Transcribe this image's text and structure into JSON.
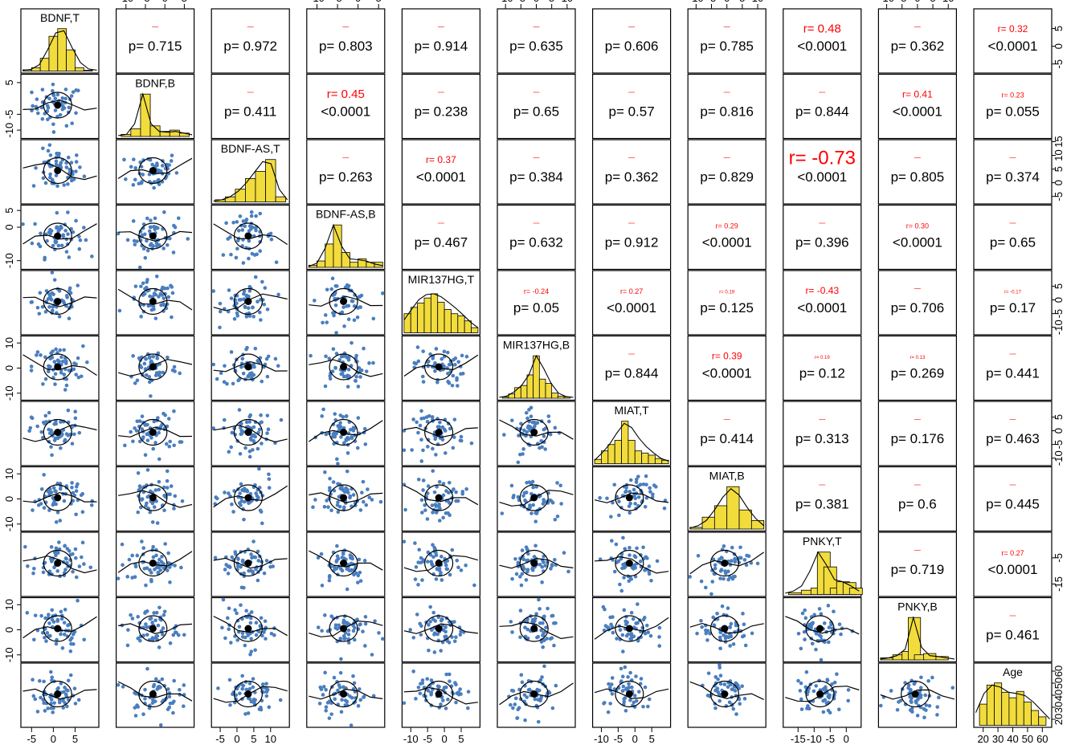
{
  "chart_data": {
    "type": "scatter",
    "variables": [
      "BDNF,T",
      "BDNF,B",
      "BDNF-AS,T",
      "BDNF-AS,B",
      "MIR137HG,T",
      "MIR137HG,B",
      "MIAT,T",
      "MIAT,B",
      "PNKY,T",
      "PNKY,B",
      "Age"
    ],
    "ranges": [
      [
        -7,
        10
      ],
      [
        -12,
        7
      ],
      [
        -7,
        15
      ],
      [
        -12,
        6
      ],
      [
        -12,
        10
      ],
      [
        -12,
        12
      ],
      [
        -12,
        10
      ],
      [
        -12,
        12
      ],
      [
        -19,
        4
      ],
      [
        -12,
        12
      ],
      [
        15,
        65
      ]
    ],
    "bottom_ticks": [
      {
        "values": [
          -5,
          0,
          5
        ],
        "labels": [
          "-5",
          "0",
          "5"
        ]
      },
      null,
      {
        "values": [
          -5,
          0,
          5,
          10
        ],
        "labels": [
          "-5",
          "0",
          "5",
          "10"
        ]
      },
      null,
      {
        "values": [
          -10,
          -5,
          0,
          5
        ],
        "labels": [
          "-10",
          "-5",
          "0",
          "5"
        ]
      },
      null,
      {
        "values": [
          -10,
          -5,
          0,
          5
        ],
        "labels": [
          "-10",
          "-5",
          "0",
          "5"
        ]
      },
      null,
      {
        "values": [
          -15,
          -10,
          -5,
          0
        ],
        "labels": [
          "-15",
          "-10",
          "-5",
          "0"
        ]
      },
      null,
      {
        "values": [
          20,
          30,
          40,
          50,
          60
        ],
        "labels": [
          "20",
          "30",
          "40",
          "50",
          "60"
        ]
      }
    ],
    "top_ticks": [
      null,
      {
        "values": [
          -10,
          -5,
          0,
          5
        ],
        "labels": [
          "-10",
          "-5",
          "0",
          "5"
        ]
      },
      null,
      {
        "values": [
          -10,
          -5,
          0,
          5
        ],
        "labels": [
          "-10",
          "-5",
          "0",
          "5"
        ]
      },
      null,
      {
        "values": [
          -10,
          -5,
          0,
          5,
          10
        ],
        "labels": [
          "-10",
          "-5",
          "0",
          "5",
          "10"
        ]
      },
      null,
      {
        "values": [
          -10,
          -5,
          0,
          5,
          10
        ],
        "labels": [
          "-10",
          "-5",
          "0",
          "5",
          "10"
        ]
      },
      null,
      {
        "values": [
          -10,
          -5,
          0,
          5,
          10
        ],
        "labels": [
          "-10",
          "-5",
          "0",
          "5",
          "10"
        ]
      },
      null
    ],
    "left_ticks": [
      null,
      {
        "values": [
          5,
          -5,
          -10
        ],
        "labels": [
          "5",
          "-5",
          "-10"
        ]
      },
      null,
      {
        "values": [
          5,
          0,
          -10
        ],
        "labels": [
          "5",
          "0",
          "-10"
        ]
      },
      null,
      {
        "values": [
          10,
          0,
          -10
        ],
        "labels": [
          "10",
          "0",
          "-10"
        ]
      },
      null,
      {
        "values": [
          10,
          0,
          -10
        ],
        "labels": [
          "10",
          "0",
          "-10"
        ]
      },
      null,
      {
        "values": [
          10,
          0,
          -10
        ],
        "labels": [
          "10",
          "0",
          "-10"
        ]
      },
      null
    ],
    "right_ticks": [
      {
        "values": [
          5,
          0,
          -5
        ],
        "labels": [
          "5",
          "0",
          "-5"
        ]
      },
      null,
      {
        "values": [
          15,
          10,
          5,
          0,
          -5
        ],
        "labels": [
          "15",
          "10",
          "5",
          "0",
          "-5"
        ]
      },
      null,
      {
        "values": [
          5,
          0,
          -5,
          -10
        ],
        "labels": [
          "5",
          "0",
          "-5",
          "-10"
        ]
      },
      null,
      {
        "values": [
          5,
          0,
          -5,
          -10
        ],
        "labels": [
          "5",
          "0",
          "-5",
          "-10"
        ]
      },
      null,
      {
        "values": [
          -5,
          -15
        ],
        "labels": [
          "-5",
          "-15"
        ]
      },
      null,
      {
        "values": [
          60,
          50,
          40,
          30,
          20
        ],
        "labels": [
          "60",
          "50",
          "40",
          "30",
          "20"
        ]
      }
    ],
    "diagonal": [
      {
        "label": "BDNF,T",
        "centers": [
          -6,
          -4,
          -2,
          0,
          2,
          4,
          6,
          8
        ],
        "heights": [
          0.03,
          0.08,
          0.3,
          0.82,
          1.0,
          0.5,
          0.08,
          0.02
        ],
        "density": [
          0.02,
          0.04,
          0.15,
          0.5,
          0.9,
          0.95,
          0.55,
          0.2,
          0.05,
          0.02
        ]
      },
      {
        "label": "BDNF,B",
        "centers": [
          -10,
          -7.5,
          -5,
          -2.5,
          0,
          2.5,
          5
        ],
        "heights": [
          0.05,
          0.18,
          1.0,
          0.25,
          0.12,
          0.15,
          0.08
        ],
        "density": [
          0.02,
          0.05,
          0.3,
          1.0,
          0.3,
          0.12,
          0.1,
          0.12,
          0.08,
          0.04
        ]
      },
      {
        "label": "BDNF-AS,T",
        "centers": [
          -5,
          -2,
          1,
          4,
          7,
          10,
          13
        ],
        "heights": [
          0.05,
          0.12,
          0.3,
          0.55,
          0.72,
          1.0,
          0.12
        ],
        "density": [
          0.02,
          0.05,
          0.12,
          0.25,
          0.45,
          0.7,
          0.95,
          0.9,
          0.3,
          0.05
        ]
      },
      {
        "label": "BDNF-AS,B",
        "centers": [
          -11,
          -9,
          -7,
          -5,
          -3,
          -1,
          1,
          3,
          5
        ],
        "heights": [
          0.05,
          0.15,
          0.55,
          1.0,
          0.35,
          0.12,
          0.2,
          0.12,
          0.12
        ],
        "density": [
          0.02,
          0.1,
          0.45,
          1.0,
          0.5,
          0.2,
          0.18,
          0.15,
          0.08,
          0.04
        ]
      },
      {
        "label": "MIR137HG,T",
        "centers": [
          -11,
          -9,
          -7,
          -5,
          -3,
          -1,
          1,
          3,
          5,
          7,
          9
        ],
        "heights": [
          0.45,
          0.6,
          0.7,
          0.82,
          0.92,
          0.72,
          0.55,
          0.45,
          0.4,
          0.28,
          0.12
        ],
        "density": [
          0.3,
          0.55,
          0.78,
          0.9,
          0.92,
          0.85,
          0.72,
          0.58,
          0.42,
          0.25,
          0.12
        ]
      },
      {
        "label": "MIR137HG,B",
        "centers": [
          -10,
          -8,
          -6,
          -4,
          -2,
          0,
          2,
          4,
          6,
          8,
          10
        ],
        "heights": [
          0.03,
          0.1,
          0.25,
          0.3,
          0.55,
          1.0,
          0.45,
          0.35,
          0.12,
          0.05,
          0.03
        ],
        "density": [
          0.02,
          0.05,
          0.15,
          0.3,
          0.55,
          1.0,
          0.7,
          0.35,
          0.12,
          0.04,
          0.02
        ]
      },
      {
        "label": "MIAT,T",
        "centers": [
          -11,
          -9,
          -7,
          -5,
          -3,
          -1,
          1,
          3,
          5,
          7,
          9
        ],
        "heights": [
          0.1,
          0.3,
          0.45,
          0.55,
          1.0,
          0.55,
          0.3,
          0.25,
          0.2,
          0.12,
          0.08
        ],
        "density": [
          0.08,
          0.25,
          0.45,
          0.72,
          0.95,
          0.85,
          0.6,
          0.4,
          0.25,
          0.12,
          0.06
        ]
      },
      {
        "label": "MIAT,B",
        "centers": [
          -10,
          -6,
          -2,
          2,
          6,
          10
        ],
        "heights": [
          0.04,
          0.28,
          0.55,
          1.0,
          0.45,
          0.2
        ],
        "density": [
          0.02,
          0.08,
          0.2,
          0.45,
          0.75,
          0.95,
          0.8,
          0.5,
          0.25,
          0.08
        ]
      },
      {
        "label": "PNKY,T",
        "centers": [
          -16,
          -12,
          -9,
          -7,
          -5,
          -3,
          -1,
          1,
          3
        ],
        "heights": [
          0.04,
          0.1,
          0.15,
          1.0,
          0.65,
          0.15,
          0.3,
          0.28,
          0.15
        ],
        "density": [
          0.03,
          0.08,
          0.2,
          0.55,
          1.0,
          0.7,
          0.35,
          0.3,
          0.2,
          0.08
        ]
      },
      {
        "label": "PNKY,B",
        "centers": [
          -10,
          -6,
          -3,
          -1,
          1,
          4,
          8
        ],
        "heights": [
          0.05,
          0.12,
          0.2,
          1.0,
          0.12,
          0.15,
          0.08
        ],
        "density": [
          0.02,
          0.05,
          0.1,
          0.25,
          1.0,
          0.3,
          0.1,
          0.08,
          0.05,
          0.02
        ]
      },
      {
        "label": "Age",
        "centers": [
          20,
          25,
          30,
          35,
          40,
          45,
          50,
          55,
          60
        ],
        "heights": [
          0.5,
          0.95,
          1.0,
          0.78,
          0.65,
          0.8,
          0.55,
          0.35,
          0.2
        ],
        "density": [
          0.3,
          0.75,
          0.95,
          0.9,
          0.78,
          0.75,
          0.7,
          0.55,
          0.35,
          0.15
        ]
      }
    ],
    "correlations": [
      {
        "row": 1,
        "col": 2,
        "p": "p= 0.715",
        "r": "",
        "r_size": "tiny"
      },
      {
        "row": 1,
        "col": 3,
        "p": "p= 0.972",
        "r": "",
        "r_size": "tiny"
      },
      {
        "row": 1,
        "col": 4,
        "p": "p= 0.803",
        "r": "",
        "r_size": "tiny"
      },
      {
        "row": 1,
        "col": 5,
        "p": "p= 0.914",
        "r": "",
        "r_size": "tiny"
      },
      {
        "row": 1,
        "col": 6,
        "p": "p= 0.635",
        "r": "",
        "r_size": "tiny"
      },
      {
        "row": 1,
        "col": 7,
        "p": "p= 0.606",
        "r": "",
        "r_size": "tiny"
      },
      {
        "row": 1,
        "col": 8,
        "p": "p= 0.785",
        "r": "",
        "r_size": "tiny"
      },
      {
        "row": 1,
        "col": 9,
        "p": "<0.0001",
        "r": "r= 0.48",
        "r_size": "large"
      },
      {
        "row": 1,
        "col": 10,
        "p": "p= 0.362",
        "r": "",
        "r_size": "tiny"
      },
      {
        "row": 1,
        "col": 11,
        "p": "<0.0001",
        "r": "r= 0.32",
        "r_size": "medium"
      },
      {
        "row": 2,
        "col": 3,
        "p": "p= 0.411",
        "r": "",
        "r_size": "tiny"
      },
      {
        "row": 2,
        "col": 4,
        "p": "<0.0001",
        "r": "r= 0.45",
        "r_size": "large"
      },
      {
        "row": 2,
        "col": 5,
        "p": "p= 0.238",
        "r": "",
        "r_size": "tiny"
      },
      {
        "row": 2,
        "col": 6,
        "p": "p= 0.65",
        "r": "",
        "r_size": "tiny"
      },
      {
        "row": 2,
        "col": 7,
        "p": "p= 0.57",
        "r": "",
        "r_size": "tiny"
      },
      {
        "row": 2,
        "col": 8,
        "p": "p= 0.816",
        "r": "",
        "r_size": "tiny"
      },
      {
        "row": 2,
        "col": 9,
        "p": "p= 0.844",
        "r": "",
        "r_size": "tiny"
      },
      {
        "row": 2,
        "col": 10,
        "p": "<0.0001",
        "r": "r= 0.41",
        "r_size": "medium"
      },
      {
        "row": 2,
        "col": 11,
        "p": "p= 0.055",
        "r": "r= 0.23",
        "r_size": "small"
      },
      {
        "row": 3,
        "col": 4,
        "p": "p= 0.263",
        "r": "",
        "r_size": "tiny"
      },
      {
        "row": 3,
        "col": 5,
        "p": "<0.0001",
        "r": "r= 0.37",
        "r_size": "medium"
      },
      {
        "row": 3,
        "col": 6,
        "p": "p= 0.384",
        "r": "",
        "r_size": "tiny"
      },
      {
        "row": 3,
        "col": 7,
        "p": "p= 0.362",
        "r": "",
        "r_size": "tiny"
      },
      {
        "row": 3,
        "col": 8,
        "p": "p= 0.829",
        "r": "",
        "r_size": "tiny"
      },
      {
        "row": 3,
        "col": 9,
        "p": "<0.0001",
        "r": "r= -0.73",
        "r_size": "huge"
      },
      {
        "row": 3,
        "col": 10,
        "p": "p= 0.805",
        "r": "",
        "r_size": "tiny"
      },
      {
        "row": 3,
        "col": 11,
        "p": "p= 0.374",
        "r": "",
        "r_size": "tiny"
      },
      {
        "row": 4,
        "col": 5,
        "p": "p= 0.467",
        "r": "",
        "r_size": "tiny"
      },
      {
        "row": 4,
        "col": 6,
        "p": "p= 0.632",
        "r": "",
        "r_size": "tiny"
      },
      {
        "row": 4,
        "col": 7,
        "p": "p= 0.912",
        "r": "",
        "r_size": "tiny"
      },
      {
        "row": 4,
        "col": 8,
        "p": "<0.0001",
        "r": "r= 0.29",
        "r_size": "small"
      },
      {
        "row": 4,
        "col": 9,
        "p": "p= 0.396",
        "r": "",
        "r_size": "tiny"
      },
      {
        "row": 4,
        "col": 10,
        "p": "<0.0001",
        "r": "r= 0.30",
        "r_size": "small"
      },
      {
        "row": 4,
        "col": 11,
        "p": "p= 0.65",
        "r": "",
        "r_size": "tiny"
      },
      {
        "row": 5,
        "col": 6,
        "p": "p= 0.05",
        "r": "r= -0.24",
        "r_size": "small"
      },
      {
        "row": 5,
        "col": 7,
        "p": "<0.0001",
        "r": "r= 0.27",
        "r_size": "small"
      },
      {
        "row": 5,
        "col": 8,
        "p": "p= 0.125",
        "r": "r= 0.19",
        "r_size": "xsmall"
      },
      {
        "row": 5,
        "col": 9,
        "p": "<0.0001",
        "r": "r= -0.43",
        "r_size": "medium"
      },
      {
        "row": 5,
        "col": 10,
        "p": "p= 0.706",
        "r": "",
        "r_size": "tiny"
      },
      {
        "row": 5,
        "col": 11,
        "p": "p= 0.17",
        "r": "r= -0.17",
        "r_size": "xsmall"
      },
      {
        "row": 6,
        "col": 7,
        "p": "p= 0.844",
        "r": "",
        "r_size": "tiny"
      },
      {
        "row": 6,
        "col": 8,
        "p": "<0.0001",
        "r": "r= 0.39",
        "r_size": "medium"
      },
      {
        "row": 6,
        "col": 9,
        "p": "p= 0.12",
        "r": "r= 0.19",
        "r_size": "xsmall"
      },
      {
        "row": 6,
        "col": 10,
        "p": "p= 0.269",
        "r": "r= 0.13",
        "r_size": "xsmall"
      },
      {
        "row": 6,
        "col": 11,
        "p": "p= 0.441",
        "r": "",
        "r_size": "tiny"
      },
      {
        "row": 7,
        "col": 8,
        "p": "p= 0.414",
        "r": "",
        "r_size": "tiny"
      },
      {
        "row": 7,
        "col": 9,
        "p": "p= 0.313",
        "r": "",
        "r_size": "tiny"
      },
      {
        "row": 7,
        "col": 10,
        "p": "p= 0.176",
        "r": "",
        "r_size": "tiny"
      },
      {
        "row": 7,
        "col": 11,
        "p": "p= 0.463",
        "r": "",
        "r_size": "tiny"
      },
      {
        "row": 8,
        "col": 9,
        "p": "p= 0.381",
        "r": "",
        "r_size": "tiny"
      },
      {
        "row": 8,
        "col": 10,
        "p": "p= 0.6",
        "r": "",
        "r_size": "tiny"
      },
      {
        "row": 8,
        "col": 11,
        "p": "p= 0.445",
        "r": "",
        "r_size": "tiny"
      },
      {
        "row": 9,
        "col": 10,
        "p": "p= 0.719",
        "r": "",
        "r_size": "tiny"
      },
      {
        "row": 9,
        "col": 11,
        "p": "<0.0001",
        "r": "r= 0.27",
        "r_size": "small"
      },
      {
        "row": 10,
        "col": 11,
        "p": "p= 0.461",
        "r": "",
        "r_size": "tiny"
      }
    ],
    "colors": {
      "points": "#4a7ebf",
      "bars": "#f2dc3c",
      "rtext": "#ff0000",
      "frame": "#000000",
      "center": "#000000"
    },
    "legend": "none",
    "grid": false
  }
}
